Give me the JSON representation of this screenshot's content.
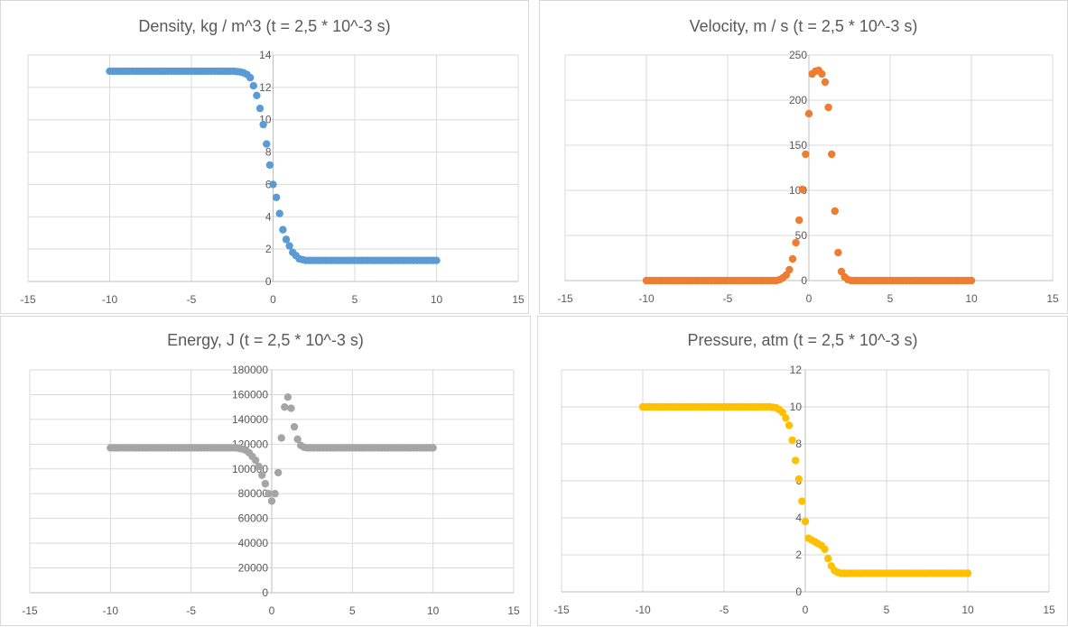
{
  "chart_data": [
    {
      "type": "scatter",
      "title": "Density, kg / m^3 (t = 2,5 * 10^-3 s)",
      "xlim": [
        -15,
        15
      ],
      "ylim": [
        0,
        14
      ],
      "xticks": [
        "-15",
        "-10",
        "-5",
        "0",
        "5",
        "10",
        "15"
      ],
      "yticks": [
        "0",
        "2",
        "4",
        "6",
        "8",
        "10",
        "12",
        "14"
      ],
      "grid": true,
      "color": "#5B9BD5",
      "series": [
        {
          "x": [
            -10,
            -9.8,
            -9.6,
            -9.4,
            -9.2,
            -9,
            -8.8,
            -8.6,
            -8.4,
            -8.2,
            -8,
            -7.8,
            -7.6,
            -7.4,
            -7.2,
            -7,
            -6.8,
            -6.6,
            -6.4,
            -6.2,
            -6,
            -5.8,
            -5.6,
            -5.4,
            -5.2,
            -5,
            -4.8,
            -4.6,
            -4.4,
            -4.2,
            -4,
            -3.8,
            -3.6,
            -3.4,
            -3.2,
            -3,
            -2.8,
            -2.6,
            -2.4,
            -2.2,
            -2,
            -1.8,
            -1.6,
            -1.4,
            -1.2,
            -1.0,
            -0.8,
            -0.6,
            -0.4,
            -0.2,
            0,
            0.2,
            0.4,
            0.6,
            0.8,
            1.0,
            1.2,
            1.4,
            1.6,
            1.8,
            2.0,
            2.2,
            2.4,
            2.6,
            2.8,
            3.0,
            3.2,
            3.4,
            3.6,
            3.8,
            4.0,
            4.2,
            4.4,
            4.6,
            4.8,
            5.0,
            5.2,
            5.4,
            5.6,
            5.8,
            6.0,
            6.2,
            6.4,
            6.6,
            6.8,
            7.0,
            7.2,
            7.4,
            7.6,
            7.8,
            8.0,
            8.2,
            8.4,
            8.6,
            8.8,
            9.0,
            9.2,
            9.4,
            9.6,
            9.8,
            10
          ],
          "y": [
            13,
            13,
            13,
            13,
            13,
            13,
            13,
            13,
            13,
            13,
            13,
            13,
            13,
            13,
            13,
            13,
            13,
            13,
            13,
            13,
            13,
            13,
            13,
            13,
            13,
            13,
            13,
            13,
            13,
            13,
            13,
            13,
            13,
            13,
            13,
            13,
            13,
            13,
            13,
            12.98,
            12.95,
            12.9,
            12.8,
            12.6,
            12.1,
            11.5,
            10.7,
            9.7,
            8.5,
            7.2,
            6.0,
            5.2,
            4.2,
            3.2,
            2.6,
            2.2,
            1.8,
            1.6,
            1.4,
            1.35,
            1.3,
            1.3,
            1.3,
            1.3,
            1.3,
            1.3,
            1.3,
            1.3,
            1.3,
            1.3,
            1.3,
            1.3,
            1.3,
            1.3,
            1.3,
            1.3,
            1.3,
            1.3,
            1.3,
            1.3,
            1.3,
            1.3,
            1.3,
            1.3,
            1.3,
            1.3,
            1.3,
            1.3,
            1.3,
            1.3,
            1.3,
            1.3,
            1.3,
            1.3,
            1.3,
            1.3,
            1.3,
            1.3,
            1.3,
            1.3,
            1.3
          ]
        }
      ]
    },
    {
      "type": "scatter",
      "title": "Velocity, m / s (t = 2,5 * 10^-3 s)",
      "xlim": [
        -15,
        15
      ],
      "ylim": [
        0,
        250
      ],
      "xticks": [
        "-15",
        "-10",
        "-5",
        "0",
        "5",
        "10",
        "15"
      ],
      "yticks": [
        "0",
        "50",
        "100",
        "150",
        "200",
        "250"
      ],
      "grid": true,
      "color": "#ED7D31",
      "series": [
        {
          "x": [
            -10,
            -9.8,
            -9.6,
            -9.4,
            -9.2,
            -9,
            -8.8,
            -8.6,
            -8.4,
            -8.2,
            -8,
            -7.8,
            -7.6,
            -7.4,
            -7.2,
            -7,
            -6.8,
            -6.6,
            -6.4,
            -6.2,
            -6,
            -5.8,
            -5.6,
            -5.4,
            -5.2,
            -5,
            -4.8,
            -4.6,
            -4.4,
            -4.2,
            -4,
            -3.8,
            -3.6,
            -3.4,
            -3.2,
            -3,
            -2.8,
            -2.6,
            -2.4,
            -2.2,
            -2,
            -1.8,
            -1.6,
            -1.4,
            -1.2,
            -1.0,
            -0.8,
            -0.6,
            -0.4,
            -0.2,
            0,
            0.2,
            0.4,
            0.6,
            0.8,
            1.0,
            1.2,
            1.4,
            1.6,
            1.8,
            2.0,
            2.2,
            2.4,
            2.6,
            2.8,
            3.0,
            3.2,
            3.4,
            3.6,
            3.8,
            4.0,
            4.2,
            4.4,
            4.6,
            4.8,
            5.0,
            5.2,
            5.4,
            5.6,
            5.8,
            6.0,
            6.2,
            6.4,
            6.6,
            6.8,
            7.0,
            7.2,
            7.4,
            7.6,
            7.8,
            8.0,
            8.2,
            8.4,
            8.6,
            8.8,
            9.0,
            9.2,
            9.4,
            9.6,
            9.8,
            10
          ],
          "y": [
            0,
            0,
            0,
            0,
            0,
            0,
            0,
            0,
            0,
            0,
            0,
            0,
            0,
            0,
            0,
            0,
            0,
            0,
            0,
            0,
            0,
            0,
            0,
            0,
            0,
            0,
            0,
            0,
            0,
            0,
            0,
            0,
            0,
            0,
            0,
            0,
            0,
            0,
            0,
            0,
            0,
            1,
            3,
            6,
            12,
            24,
            42,
            67,
            101,
            140,
            185,
            229,
            232,
            233,
            229,
            220,
            192,
            140,
            77,
            31,
            10,
            4,
            1,
            0,
            0,
            0,
            0,
            0,
            0,
            0,
            0,
            0,
            0,
            0,
            0,
            0,
            0,
            0,
            0,
            0,
            0,
            0,
            0,
            0,
            0,
            0,
            0,
            0,
            0,
            0,
            0,
            0,
            0,
            0,
            0,
            0,
            0,
            0,
            0,
            0,
            0
          ]
        }
      ]
    },
    {
      "type": "scatter",
      "title": "Energy, J (t = 2,5 * 10^-3 s)",
      "xlim": [
        -15,
        15
      ],
      "ylim": [
        0,
        180000
      ],
      "xticks": [
        "-15",
        "-10",
        "-5",
        "0",
        "5",
        "10",
        "15"
      ],
      "yticks": [
        "0",
        "20000",
        "40000",
        "60000",
        "80000",
        "100000",
        "120000",
        "140000",
        "160000",
        "180000"
      ],
      "grid": true,
      "color": "#A5A5A5",
      "series": [
        {
          "x": [
            -10,
            -9.8,
            -9.6,
            -9.4,
            -9.2,
            -9,
            -8.8,
            -8.6,
            -8.4,
            -8.2,
            -8,
            -7.8,
            -7.6,
            -7.4,
            -7.2,
            -7,
            -6.8,
            -6.6,
            -6.4,
            -6.2,
            -6,
            -5.8,
            -5.6,
            -5.4,
            -5.2,
            -5,
            -4.8,
            -4.6,
            -4.4,
            -4.2,
            -4,
            -3.8,
            -3.6,
            -3.4,
            -3.2,
            -3,
            -2.8,
            -2.6,
            -2.4,
            -2.2,
            -2,
            -1.8,
            -1.6,
            -1.4,
            -1.2,
            -1.0,
            -0.8,
            -0.6,
            -0.4,
            -0.2,
            0,
            0.2,
            0.4,
            0.6,
            0.8,
            1.0,
            1.2,
            1.4,
            1.6,
            1.8,
            2.0,
            2.2,
            2.4,
            2.6,
            2.8,
            3.0,
            3.2,
            3.4,
            3.6,
            3.8,
            4.0,
            4.2,
            4.4,
            4.6,
            4.8,
            5.0,
            5.2,
            5.4,
            5.6,
            5.8,
            6.0,
            6.2,
            6.4,
            6.6,
            6.8,
            7.0,
            7.2,
            7.4,
            7.6,
            7.8,
            8.0,
            8.2,
            8.4,
            8.6,
            8.8,
            9.0,
            9.2,
            9.4,
            9.6,
            9.8,
            10
          ],
          "y": [
            117000,
            117000,
            117000,
            117000,
            117000,
            117000,
            117000,
            117000,
            117000,
            117000,
            117000,
            117000,
            117000,
            117000,
            117000,
            117000,
            117000,
            117000,
            117000,
            117000,
            117000,
            117000,
            117000,
            117000,
            117000,
            117000,
            117000,
            117000,
            117000,
            117000,
            117000,
            117000,
            117000,
            117000,
            117000,
            117000,
            117000,
            117000,
            117000,
            117000,
            116500,
            116000,
            115000,
            113000,
            110000,
            107000,
            102000,
            95000,
            88000,
            80000,
            74000,
            80000,
            97000,
            125000,
            150000,
            158000,
            149000,
            134000,
            124000,
            119000,
            117500,
            117000,
            117000,
            117000,
            117000,
            117000,
            117000,
            117000,
            117000,
            117000,
            117000,
            117000,
            117000,
            117000,
            117000,
            117000,
            117000,
            117000,
            117000,
            117000,
            117000,
            117000,
            117000,
            117000,
            117000,
            117000,
            117000,
            117000,
            117000,
            117000,
            117000,
            117000,
            117000,
            117000,
            117000,
            117000,
            117000,
            117000,
            117000,
            117000,
            117000
          ]
        }
      ]
    },
    {
      "type": "scatter",
      "title": "Pressure, atm (t = 2,5 * 10^-3 s)",
      "xlim": [
        -15,
        15
      ],
      "ylim": [
        0,
        12
      ],
      "xticks": [
        "-15",
        "-10",
        "-5",
        "0",
        "5",
        "10",
        "15"
      ],
      "yticks": [
        "0",
        "2",
        "4",
        "6",
        "8",
        "10",
        "12"
      ],
      "grid": true,
      "color": "#FFC000",
      "series": [
        {
          "x": [
            -10,
            -9.8,
            -9.6,
            -9.4,
            -9.2,
            -9,
            -8.8,
            -8.6,
            -8.4,
            -8.2,
            -8,
            -7.8,
            -7.6,
            -7.4,
            -7.2,
            -7,
            -6.8,
            -6.6,
            -6.4,
            -6.2,
            -6,
            -5.8,
            -5.6,
            -5.4,
            -5.2,
            -5,
            -4.8,
            -4.6,
            -4.4,
            -4.2,
            -4,
            -3.8,
            -3.6,
            -3.4,
            -3.2,
            -3,
            -2.8,
            -2.6,
            -2.4,
            -2.2,
            -2,
            -1.8,
            -1.6,
            -1.4,
            -1.2,
            -1.0,
            -0.8,
            -0.6,
            -0.4,
            -0.2,
            0,
            0.2,
            0.4,
            0.6,
            0.8,
            1.0,
            1.2,
            1.4,
            1.6,
            1.8,
            2.0,
            2.2,
            2.4,
            2.6,
            2.8,
            3.0,
            3.2,
            3.4,
            3.6,
            3.8,
            4.0,
            4.2,
            4.4,
            4.6,
            4.8,
            5.0,
            5.2,
            5.4,
            5.6,
            5.8,
            6.0,
            6.2,
            6.4,
            6.6,
            6.8,
            7.0,
            7.2,
            7.4,
            7.6,
            7.8,
            8.0,
            8.2,
            8.4,
            8.6,
            8.8,
            9.0,
            9.2,
            9.4,
            9.6,
            9.8,
            10
          ],
          "y": [
            10,
            10,
            10,
            10,
            10,
            10,
            10,
            10,
            10,
            10,
            10,
            10,
            10,
            10,
            10,
            10,
            10,
            10,
            10,
            10,
            10,
            10,
            10,
            10,
            10,
            10,
            10,
            10,
            10,
            10,
            10,
            10,
            10,
            10,
            10,
            10,
            10,
            10,
            10,
            10,
            9.98,
            9.95,
            9.85,
            9.7,
            9.4,
            9.0,
            8.2,
            7.1,
            6.1,
            4.9,
            3.8,
            2.9,
            2.8,
            2.7,
            2.6,
            2.5,
            2.3,
            1.8,
            1.4,
            1.15,
            1.05,
            1.0,
            1.0,
            1.0,
            1.0,
            1.0,
            1.0,
            1.0,
            1.0,
            1.0,
            1.0,
            1.0,
            1.0,
            1.0,
            1.0,
            1.0,
            1.0,
            1.0,
            1.0,
            1.0,
            1.0,
            1.0,
            1.0,
            1.0,
            1.0,
            1.0,
            1.0,
            1.0,
            1.0,
            1.0,
            1.0,
            1.0,
            1.0,
            1.0,
            1.0,
            1.0,
            1.0,
            1.0,
            1.0,
            1.0,
            1.0
          ]
        }
      ]
    }
  ]
}
